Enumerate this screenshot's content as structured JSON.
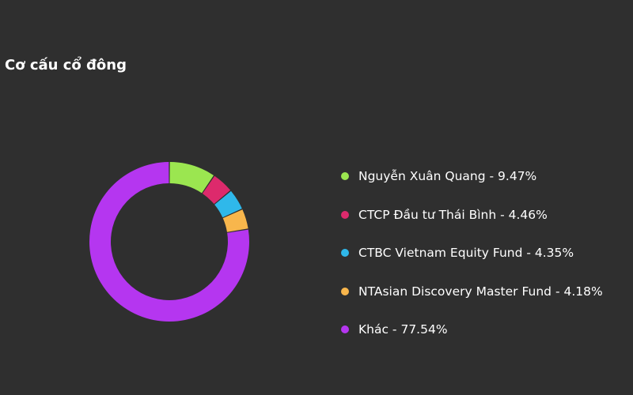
{
  "title": "Cơ cấu cổ đông",
  "chart_data": {
    "type": "pie",
    "title": "Cơ cấu cổ đông",
    "legend_position": "right",
    "series": [
      {
        "name": "Nguyễn Xuân Quang",
        "value": 9.47,
        "label": "Nguyễn Xuân Quang - 9.47%",
        "color": "#9be650"
      },
      {
        "name": "CTCP Đầu tư Thái Bình",
        "value": 4.46,
        "label": "CTCP Đầu tư Thái Bình - 4.46%",
        "color": "#dd2a6c"
      },
      {
        "name": "CTBC Vietnam Equity Fund",
        "value": 4.35,
        "label": "CTBC Vietnam Equity Fund - 4.35%",
        "color": "#2fb8ea"
      },
      {
        "name": "NTAsian Discovery Master Fund",
        "value": 4.18,
        "label": "NTAsian Discovery Master Fund - 4.18%",
        "color": "#f8b64c"
      },
      {
        "name": "Khác",
        "value": 77.54,
        "label": "Khác - 77.54%",
        "color": "#b536f0"
      }
    ]
  }
}
